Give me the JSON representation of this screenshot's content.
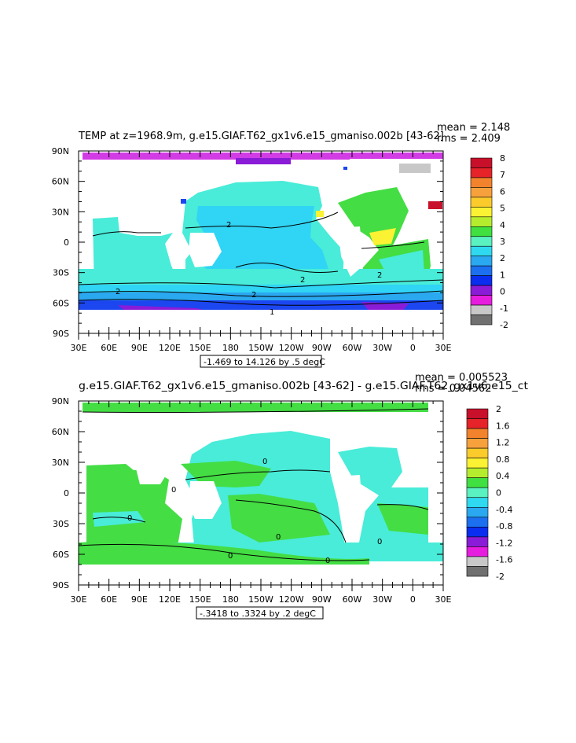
{
  "chart_data": [
    {
      "type": "heatmap",
      "title": "TEMP at z=1968.9m, g.e15.GIAF.T62_gx1v6.e15_gmaniso.002b [43-62]",
      "stats": {
        "mean": "mean = 2.148",
        "rms": "rms = 2.409"
      },
      "x_ticks": [
        "30E",
        "60E",
        "90E",
        "120E",
        "150E",
        "180",
        "150W",
        "120W",
        "90W",
        "60W",
        "30W",
        "0",
        "30E"
      ],
      "y_ticks": [
        "90N",
        "60N",
        "30N",
        "0",
        "30S",
        "60S",
        "90S"
      ],
      "contour_info": "-1.469 to 14.126 by .5 degC",
      "contour_labels": [
        "2",
        "2",
        "2",
        "2",
        "2",
        "1"
      ],
      "colorbar": {
        "labels": [
          "8",
          "7",
          "6",
          "5",
          "4",
          "3",
          "2",
          "1",
          "0",
          "-1",
          "-2"
        ],
        "colors": [
          "#c8102a",
          "#e52329",
          "#f2822c",
          "#f7a13c",
          "#fbcb2c",
          "#faf233",
          "#b5ed2e",
          "#40e040",
          "#5af2c0",
          "#2fdaf0",
          "#2aa8f0",
          "#1c70f0",
          "#0a2ef0",
          "#8a1cd8",
          "#e61cde",
          "#c8c8c8",
          "#707070"
        ]
      },
      "field_colors": {
        "polar_north": "#d23ce4",
        "band_green": "#44dd44",
        "band_cyan": "#48ecd8",
        "band_lightblue": "#30d4f4",
        "antarctic_blue": "#1c46f0",
        "antarctic_purple": "#8a1cd8"
      }
    },
    {
      "type": "heatmap",
      "title": "g.e15.GIAF.T62_gx1v6.e15_gmaniso.002b [43-62] - g.e15.GIAF.T62_gx1v6.e15_ct",
      "stats": {
        "mean": "mean = 0.005523",
        "rms": "rms = 0.04562"
      },
      "x_ticks": [
        "30E",
        "60E",
        "90E",
        "120E",
        "150E",
        "180",
        "150W",
        "120W",
        "90W",
        "60W",
        "30W",
        "0",
        "30E"
      ],
      "y_ticks": [
        "90N",
        "60N",
        "30N",
        "0",
        "30S",
        "60S",
        "90S"
      ],
      "contour_info": "-.3418 to .3324 by .2 degC",
      "contour_labels": [
        "0",
        "0",
        "0",
        "0",
        "0",
        "0",
        "0"
      ],
      "colorbar": {
        "labels": [
          "2",
          "1.6",
          "1.2",
          "0.8",
          "0.4",
          "0",
          "-0.4",
          "-0.8",
          "-1.2",
          "-1.6",
          "-2"
        ],
        "colors": [
          "#c8102a",
          "#e52329",
          "#f2822c",
          "#f7a13c",
          "#fbcb2c",
          "#faf233",
          "#b5ed2e",
          "#40e040",
          "#5af2c0",
          "#2fdaf0",
          "#2aa8f0",
          "#1c70f0",
          "#0a2ef0",
          "#8a1cd8",
          "#e61cde",
          "#c8c8c8",
          "#707070"
        ]
      },
      "field_colors": {
        "positive_green": "#44dd44",
        "neutral_cyan": "#48ecd8"
      }
    }
  ]
}
